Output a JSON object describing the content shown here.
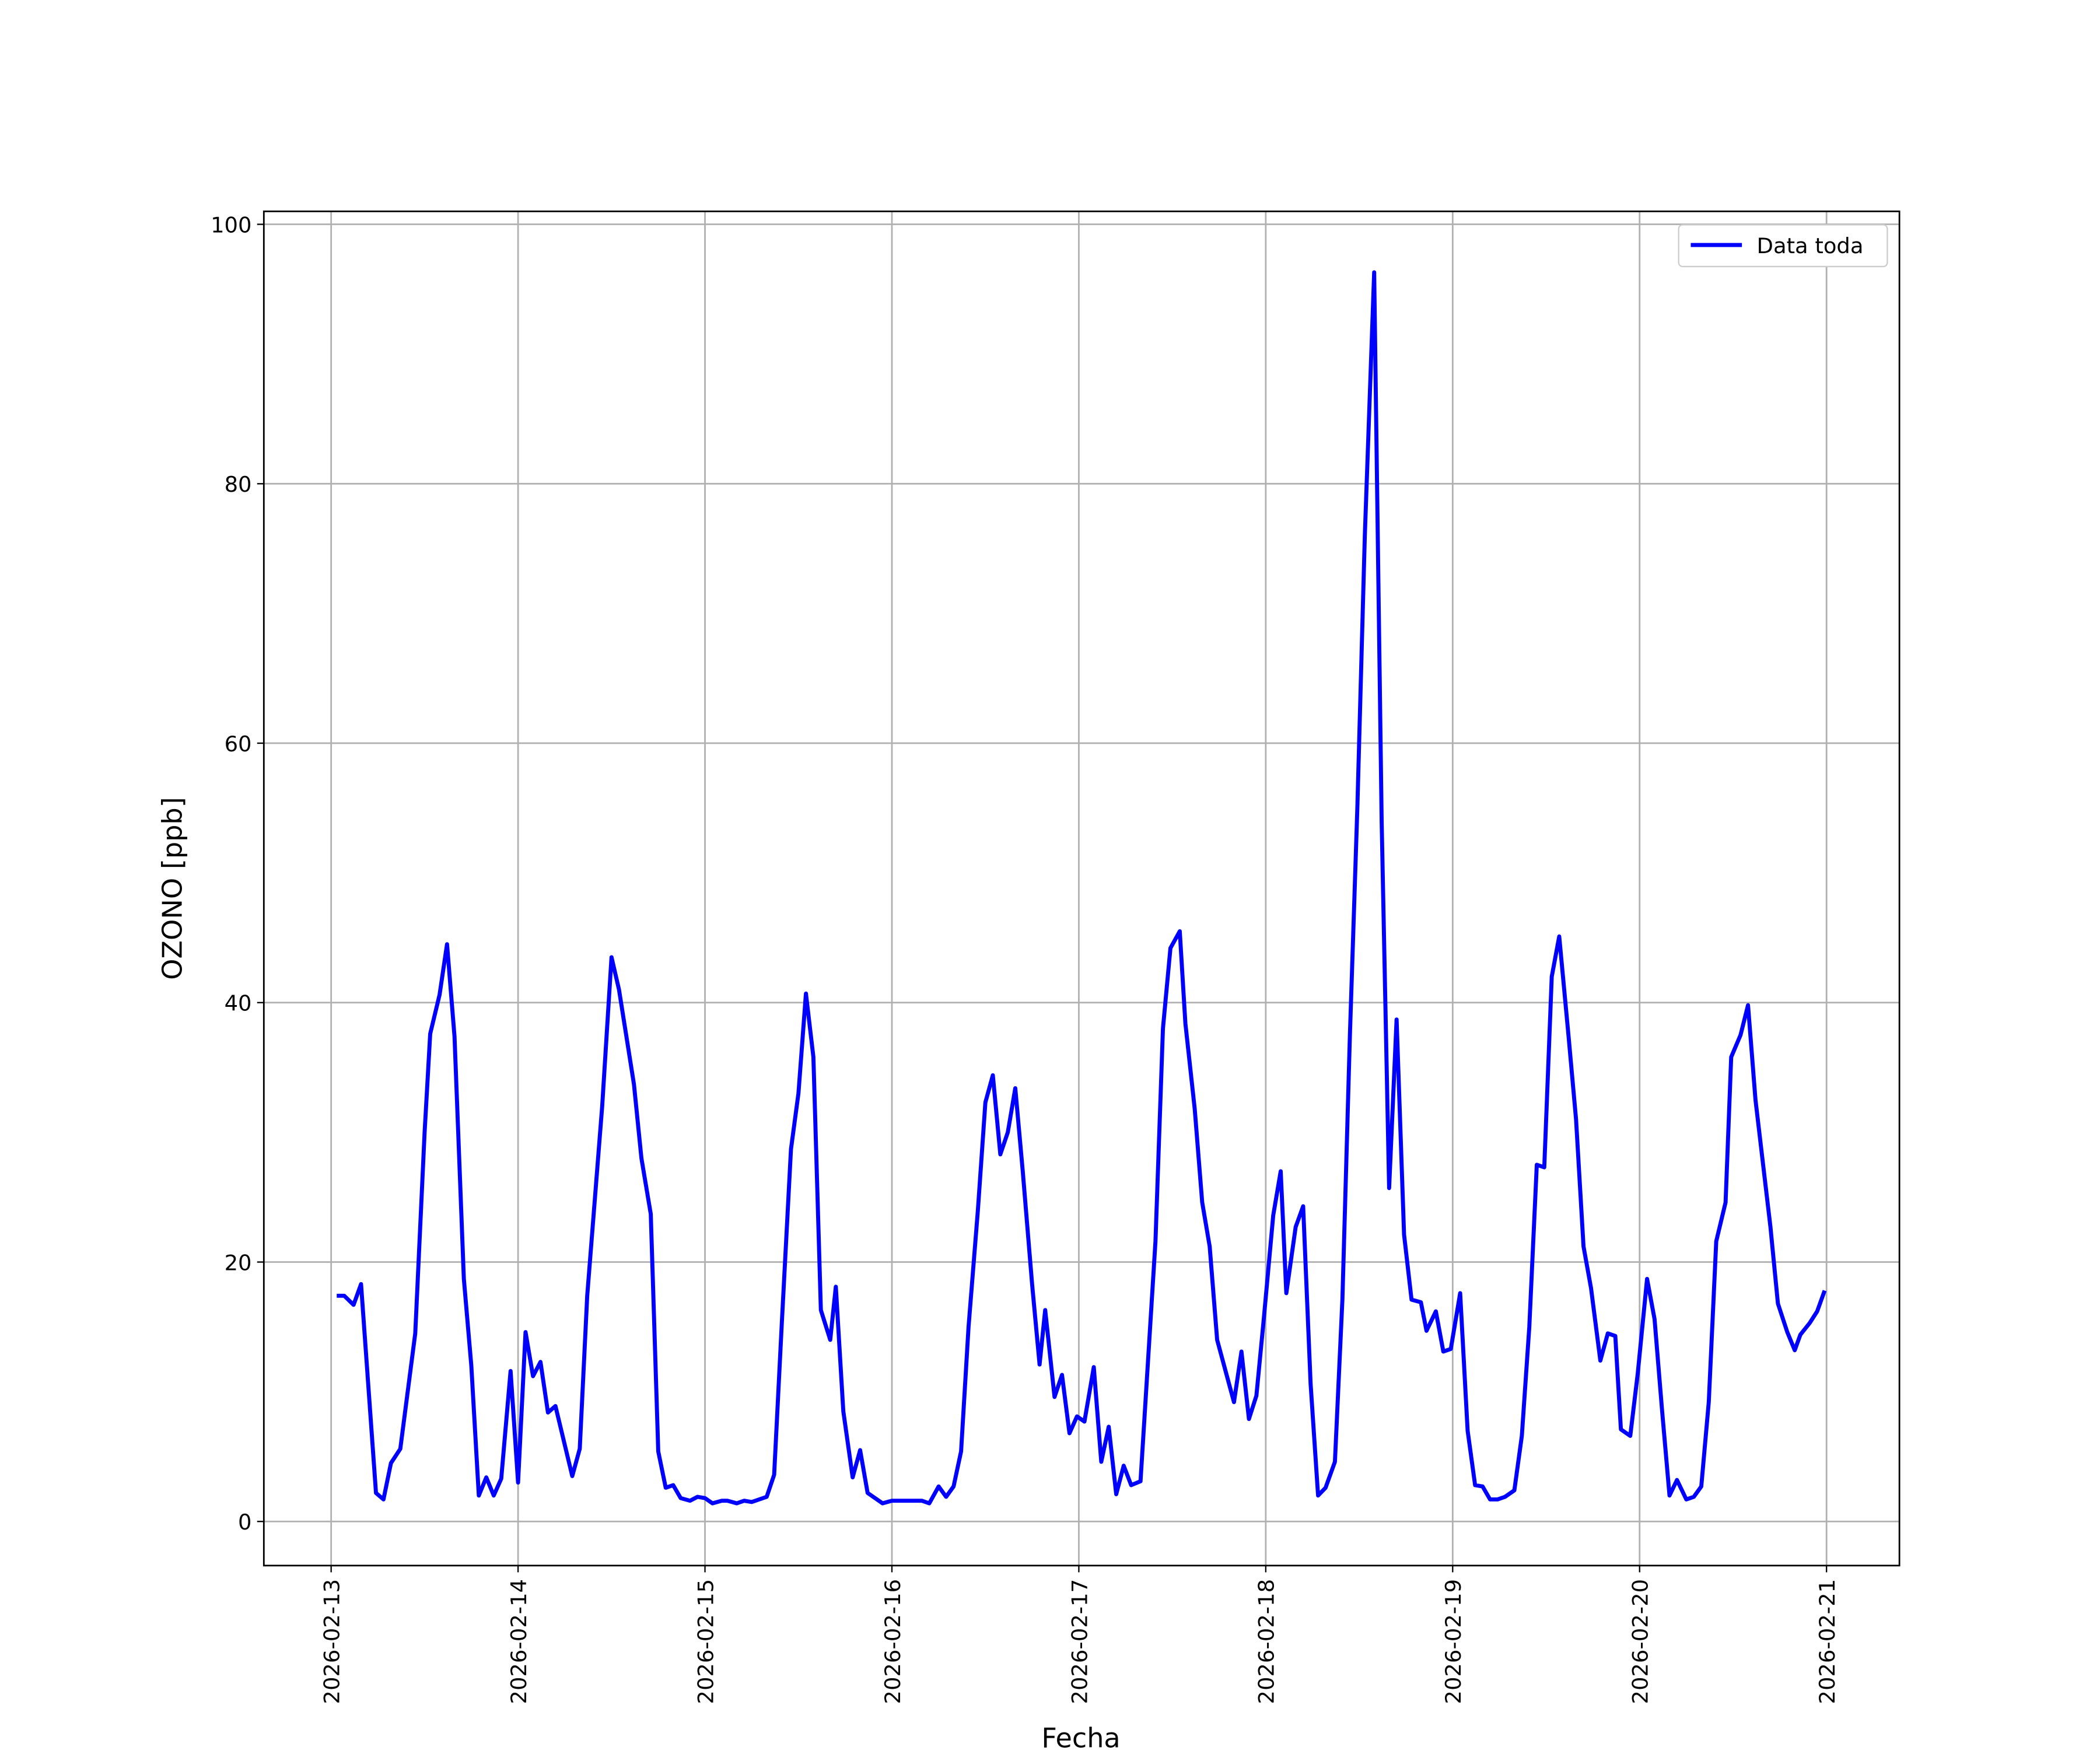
{
  "chart_data": {
    "type": "line",
    "x_label": "Fecha",
    "y_label": "OZONO [ppb]",
    "xlim": [
      -0.36,
      8.39
    ],
    "ylim": [
      -3.4,
      101
    ],
    "xticks": [
      {
        "value": 0,
        "label": "2026-02-13"
      },
      {
        "value": 1,
        "label": "2026-02-14"
      },
      {
        "value": 2,
        "label": "2026-02-15"
      },
      {
        "value": 3,
        "label": "2026-02-16"
      },
      {
        "value": 4,
        "label": "2026-02-17"
      },
      {
        "value": 5,
        "label": "2026-02-18"
      },
      {
        "value": 6,
        "label": "2026-02-19"
      },
      {
        "value": 7,
        "label": "2026-02-20"
      },
      {
        "value": 8,
        "label": "2026-02-21"
      }
    ],
    "yticks": [
      0,
      20,
      40,
      60,
      80,
      100
    ],
    "grid": true,
    "legend": "upper right",
    "series": [
      {
        "name": "Data toda",
        "color": "#0000ff",
        "x": [
          0.03,
          0.07,
          0.12,
          0.16,
          0.24,
          0.28,
          0.32,
          0.37,
          0.45,
          0.5,
          0.53,
          0.58,
          0.62,
          0.66,
          0.71,
          0.75,
          0.79,
          0.83,
          0.87,
          0.91,
          0.96,
          1.0,
          1.04,
          1.08,
          1.12,
          1.16,
          1.2,
          1.29,
          1.33,
          1.37,
          1.45,
          1.5,
          1.54,
          1.62,
          1.66,
          1.71,
          1.75,
          1.79,
          1.83,
          1.87,
          1.92,
          1.96,
          2.0,
          2.04,
          2.09,
          2.12,
          2.17,
          2.21,
          2.25,
          2.33,
          2.37,
          2.41,
          2.46,
          2.5,
          2.54,
          2.58,
          2.62,
          2.67,
          2.7,
          2.74,
          2.79,
          2.83,
          2.87,
          2.95,
          3.0,
          3.16,
          3.2,
          3.25,
          3.29,
          3.33,
          3.37,
          3.41,
          3.46,
          3.5,
          3.54,
          3.58,
          3.62,
          3.66,
          3.7,
          3.75,
          3.79,
          3.82,
          3.87,
          3.91,
          3.95,
          3.99,
          4.03,
          4.08,
          4.12,
          4.16,
          4.2,
          4.24,
          4.28,
          4.33,
          4.41,
          4.45,
          4.49,
          4.54,
          4.57,
          4.62,
          4.66,
          4.7,
          4.74,
          4.83,
          4.87,
          4.91,
          4.95,
          4.99,
          5.04,
          5.08,
          5.11,
          5.16,
          5.2,
          5.24,
          5.28,
          5.32,
          5.37,
          5.41,
          5.45,
          5.49,
          5.53,
          5.58,
          5.62,
          5.66,
          5.7,
          5.74,
          5.78,
          5.83,
          5.86,
          5.91,
          5.95,
          5.99,
          6.04,
          6.08,
          6.12,
          6.16,
          6.2,
          6.24,
          6.28,
          6.33,
          6.37,
          6.41,
          6.45,
          6.49,
          6.53,
          6.57,
          6.62,
          6.66,
          6.7,
          6.74,
          6.79,
          6.83,
          6.87,
          6.9,
          6.95,
          6.99,
          7.04,
          7.08,
          7.12,
          7.16,
          7.2,
          7.25,
          7.29,
          7.33,
          7.37,
          7.41,
          7.46,
          7.49,
          7.54,
          7.58,
          7.62,
          7.66,
          7.7,
          7.74,
          7.79,
          7.83,
          7.86,
          7.91,
          7.95,
          7.99
        ],
        "values": [
          17.4,
          17.4,
          16.7,
          18.3,
          2.2,
          1.7,
          4.5,
          5.6,
          14.5,
          30,
          37.6,
          40.6,
          44.5,
          37.4,
          18.7,
          12,
          2,
          3.4,
          2,
          3.3,
          11.6,
          3,
          14.6,
          11.2,
          12.3,
          8.4,
          8.9,
          3.5,
          5.6,
          17.4,
          32,
          43.5,
          41,
          33.7,
          28,
          23.7,
          5.4,
          2.6,
          2.8,
          1.8,
          1.6,
          1.9,
          1.8,
          1.4,
          1.6,
          1.6,
          1.4,
          1.6,
          1.5,
          1.9,
          3.6,
          15,
          28.7,
          33,
          40.7,
          35.8,
          16.3,
          14,
          18.1,
          8.5,
          3.4,
          5.5,
          2.2,
          1.4,
          1.6,
          1.6,
          1.4,
          2.7,
          1.9,
          2.7,
          5.4,
          15,
          24,
          32.3,
          34.4,
          28.3,
          30,
          33.4,
          27,
          18.3,
          12.1,
          16.3,
          9.6,
          11.3,
          6.8,
          8.1,
          7.7,
          11.9,
          4.6,
          7.3,
          2.1,
          4.3,
          2.8,
          3.1,
          21.6,
          38,
          44.2,
          45.5,
          38.4,
          31.8,
          24.6,
          21.2,
          14,
          9.2,
          13.1,
          7.9,
          9.7,
          15.7,
          23.6,
          27,
          17.6,
          22.7,
          24.3,
          10.6,
          2,
          2.6,
          4.6,
          17.1,
          37.4,
          55,
          76,
          96.3,
          54,
          25.7,
          38.7,
          22.1,
          17.1,
          16.9,
          14.7,
          16.2,
          13.1,
          13.3,
          17.6,
          7,
          2.8,
          2.7,
          1.7,
          1.7,
          1.9,
          2.4,
          6.6,
          15,
          27.5,
          27.3,
          42,
          45.1,
          37.4,
          31,
          21.2,
          18,
          12.4,
          14.5,
          14.3,
          7.1,
          6.6,
          11.4,
          18.7,
          15.6,
          8.6,
          2,
          3.2,
          1.7,
          1.9,
          2.7,
          9.2,
          21.6,
          24.6,
          35.8,
          37.5,
          39.8,
          32.5,
          27.6,
          22.7,
          16.8,
          14.6,
          13.2,
          14.4,
          15.3,
          16.2,
          17.8
        ]
      }
    ]
  }
}
